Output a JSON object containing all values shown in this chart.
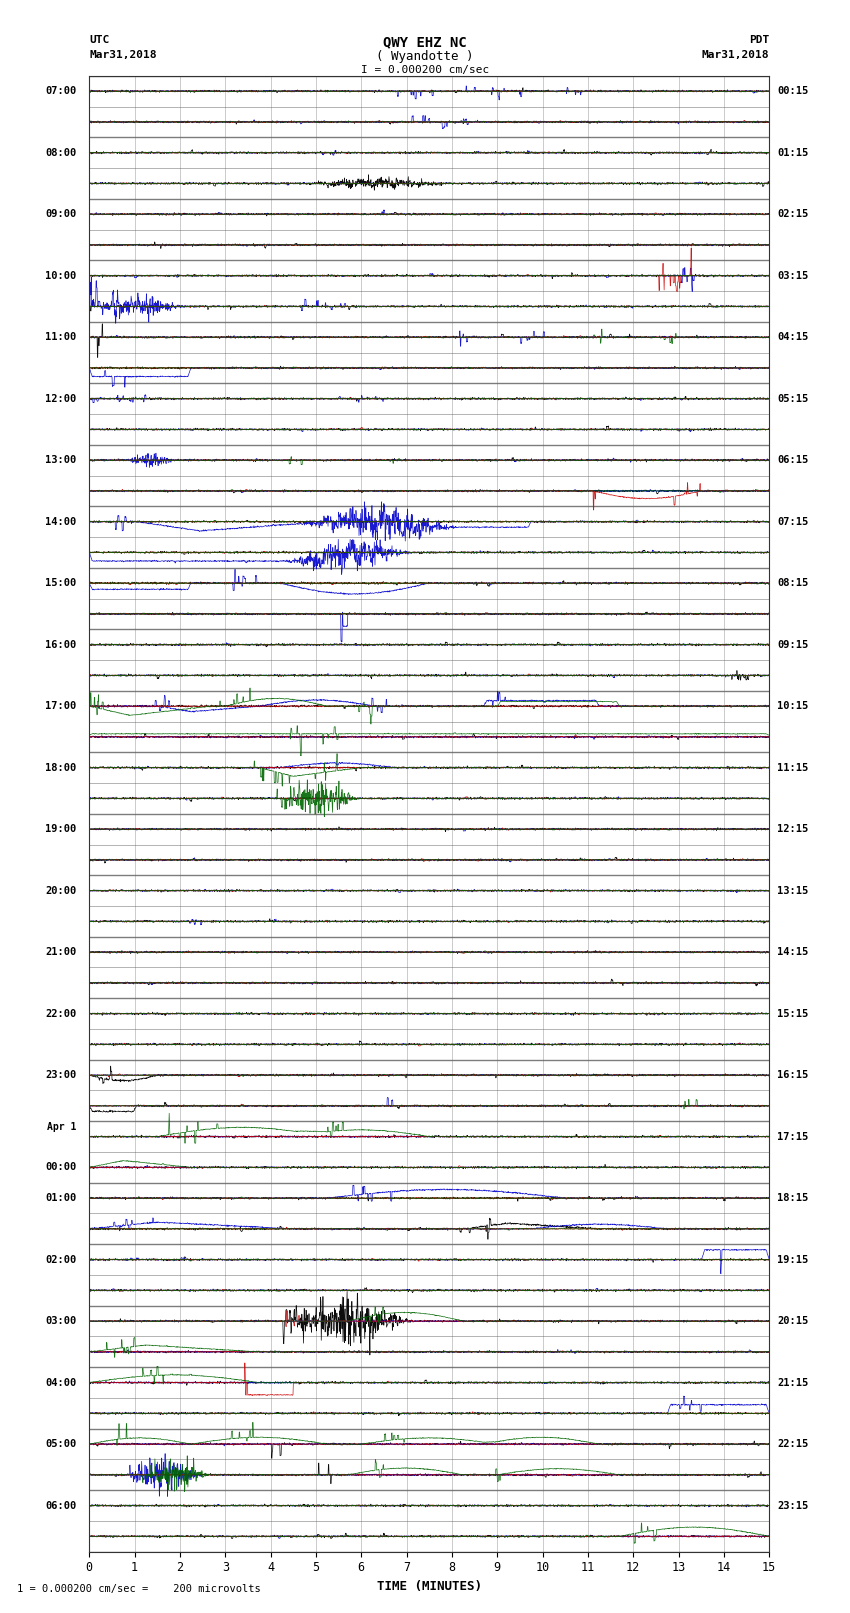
{
  "title_line1": "QWY EHZ NC",
  "title_line2": "( Wyandotte )",
  "title_scale": "I = 0.000200 cm/sec",
  "left_label_top": "UTC",
  "left_label_date": "Mar31,2018",
  "right_label_top": "PDT",
  "right_label_date": "Mar31,2018",
  "xlabel": "TIME (MINUTES)",
  "footer_text": "1 = 0.000200 cm/sec =    200 microvolts",
  "n_rows": 48,
  "xlim": [
    0,
    15
  ],
  "xticks": [
    0,
    1,
    2,
    3,
    4,
    5,
    6,
    7,
    8,
    9,
    10,
    11,
    12,
    13,
    14,
    15
  ],
  "background_color": "#ffffff",
  "left_times": [
    "07:00",
    "",
    "08:00",
    "",
    "09:00",
    "",
    "10:00",
    "",
    "11:00",
    "",
    "12:00",
    "",
    "13:00",
    "",
    "14:00",
    "",
    "15:00",
    "",
    "16:00",
    "",
    "17:00",
    "",
    "18:00",
    "",
    "19:00",
    "",
    "20:00",
    "",
    "21:00",
    "",
    "22:00",
    "",
    "23:00",
    "",
    "Apr 1",
    "00:00",
    "01:00",
    "",
    "02:00",
    "",
    "03:00",
    "",
    "04:00",
    "",
    "05:00",
    "",
    "06:00",
    ""
  ],
  "right_times": [
    "00:15",
    "",
    "01:15",
    "",
    "02:15",
    "",
    "03:15",
    "",
    "04:15",
    "",
    "05:15",
    "",
    "06:15",
    "",
    "07:15",
    "",
    "08:15",
    "",
    "09:15",
    "",
    "10:15",
    "",
    "11:15",
    "",
    "12:15",
    "",
    "13:15",
    "",
    "14:15",
    "",
    "15:15",
    "",
    "16:15",
    "",
    "17:15",
    "",
    "18:15",
    "",
    "19:15",
    "",
    "20:15",
    "",
    "21:15",
    "",
    "22:15",
    "",
    "23:15",
    ""
  ]
}
